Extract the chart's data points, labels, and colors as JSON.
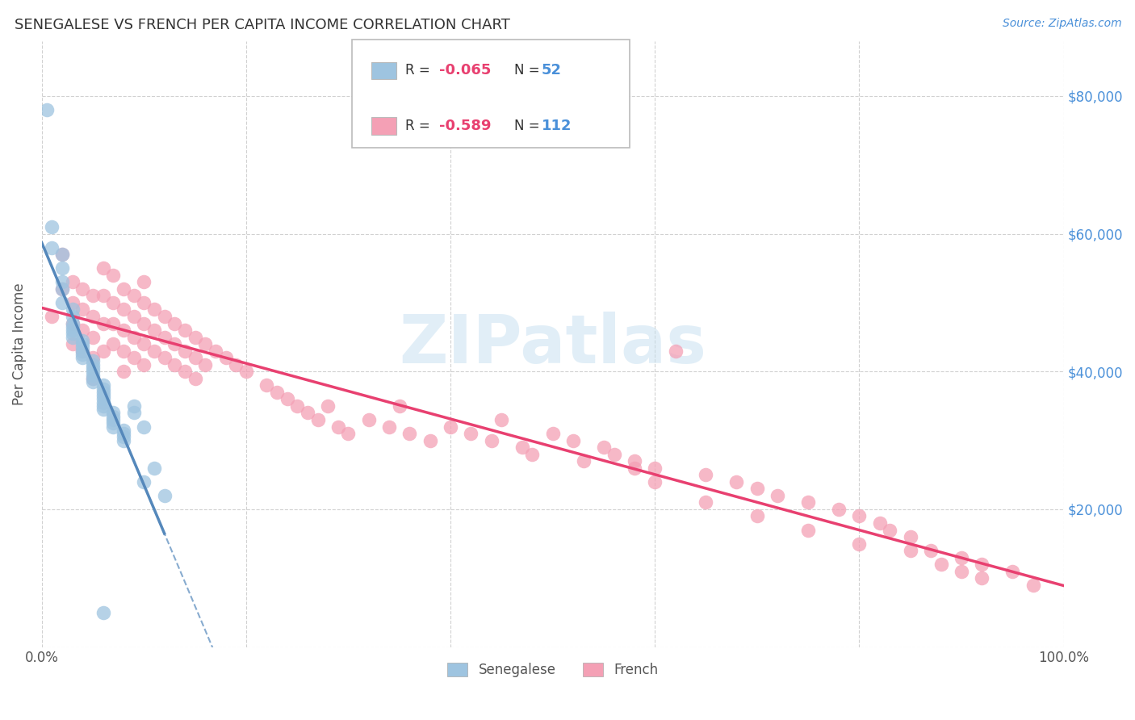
{
  "title": "SENEGALESE VS FRENCH PER CAPITA INCOME CORRELATION CHART",
  "source": "Source: ZipAtlas.com",
  "ylabel": "Per Capita Income",
  "y_ticks": [
    0,
    20000,
    40000,
    60000,
    80000
  ],
  "y_tick_labels": [
    "",
    "$20,000",
    "$40,000",
    "$60,000",
    "$80,000"
  ],
  "xlim": [
    0,
    1
  ],
  "ylim": [
    0,
    88000
  ],
  "blue_color": "#9ec4e0",
  "pink_color": "#f4a0b5",
  "trend_blue_color": "#5588bb",
  "trend_pink_color": "#e84070",
  "label_color": "#4a90d9",
  "grid_color": "#cccccc",
  "blue_points_x": [
    0.005,
    0.01,
    0.01,
    0.02,
    0.02,
    0.02,
    0.02,
    0.02,
    0.03,
    0.03,
    0.03,
    0.03,
    0.03,
    0.03,
    0.03,
    0.04,
    0.04,
    0.04,
    0.04,
    0.04,
    0.04,
    0.05,
    0.05,
    0.05,
    0.05,
    0.05,
    0.05,
    0.05,
    0.06,
    0.06,
    0.06,
    0.06,
    0.06,
    0.06,
    0.06,
    0.06,
    0.07,
    0.07,
    0.07,
    0.07,
    0.07,
    0.08,
    0.08,
    0.08,
    0.08,
    0.09,
    0.09,
    0.1,
    0.1,
    0.11,
    0.12,
    0.06
  ],
  "blue_points_y": [
    78000,
    61000,
    58000,
    57000,
    55000,
    53000,
    52000,
    50000,
    49000,
    48000,
    47000,
    46500,
    46000,
    45500,
    45000,
    44500,
    44000,
    43500,
    43000,
    42500,
    42000,
    41500,
    41000,
    40500,
    40000,
    39500,
    39000,
    38500,
    38000,
    37500,
    37000,
    36500,
    36000,
    35500,
    35000,
    34500,
    34000,
    33500,
    33000,
    32500,
    32000,
    31500,
    31000,
    30500,
    30000,
    35000,
    34000,
    32000,
    24000,
    26000,
    22000,
    5000
  ],
  "pink_points_x": [
    0.01,
    0.02,
    0.02,
    0.03,
    0.03,
    0.03,
    0.03,
    0.04,
    0.04,
    0.04,
    0.04,
    0.05,
    0.05,
    0.05,
    0.05,
    0.05,
    0.06,
    0.06,
    0.06,
    0.06,
    0.07,
    0.07,
    0.07,
    0.07,
    0.08,
    0.08,
    0.08,
    0.08,
    0.08,
    0.09,
    0.09,
    0.09,
    0.09,
    0.1,
    0.1,
    0.1,
    0.1,
    0.1,
    0.11,
    0.11,
    0.11,
    0.12,
    0.12,
    0.12,
    0.13,
    0.13,
    0.13,
    0.14,
    0.14,
    0.14,
    0.15,
    0.15,
    0.15,
    0.16,
    0.16,
    0.17,
    0.18,
    0.19,
    0.2,
    0.22,
    0.23,
    0.24,
    0.25,
    0.26,
    0.27,
    0.28,
    0.29,
    0.3,
    0.32,
    0.34,
    0.35,
    0.36,
    0.38,
    0.4,
    0.42,
    0.44,
    0.45,
    0.47,
    0.48,
    0.5,
    0.52,
    0.53,
    0.55,
    0.56,
    0.58,
    0.6,
    0.62,
    0.65,
    0.68,
    0.7,
    0.72,
    0.75,
    0.78,
    0.8,
    0.82,
    0.83,
    0.85,
    0.87,
    0.9,
    0.92,
    0.58,
    0.6,
    0.65,
    0.7,
    0.75,
    0.8,
    0.85,
    0.88,
    0.9,
    0.92,
    0.95,
    0.97
  ],
  "pink_points_y": [
    48000,
    57000,
    52000,
    53000,
    50000,
    47000,
    44000,
    52000,
    49000,
    46000,
    43000,
    51000,
    48000,
    45000,
    42000,
    39000,
    55000,
    51000,
    47000,
    43000,
    54000,
    50000,
    47000,
    44000,
    52000,
    49000,
    46000,
    43000,
    40000,
    51000,
    48000,
    45000,
    42000,
    53000,
    50000,
    47000,
    44000,
    41000,
    49000,
    46000,
    43000,
    48000,
    45000,
    42000,
    47000,
    44000,
    41000,
    46000,
    43000,
    40000,
    45000,
    42000,
    39000,
    44000,
    41000,
    43000,
    42000,
    41000,
    40000,
    38000,
    37000,
    36000,
    35000,
    34000,
    33000,
    35000,
    32000,
    31000,
    33000,
    32000,
    35000,
    31000,
    30000,
    32000,
    31000,
    30000,
    33000,
    29000,
    28000,
    31000,
    30000,
    27000,
    29000,
    28000,
    27000,
    26000,
    43000,
    25000,
    24000,
    23000,
    22000,
    21000,
    20000,
    19000,
    18000,
    17000,
    16000,
    14000,
    13000,
    12000,
    26000,
    24000,
    21000,
    19000,
    17000,
    15000,
    14000,
    12000,
    11000,
    10000,
    11000,
    9000
  ]
}
